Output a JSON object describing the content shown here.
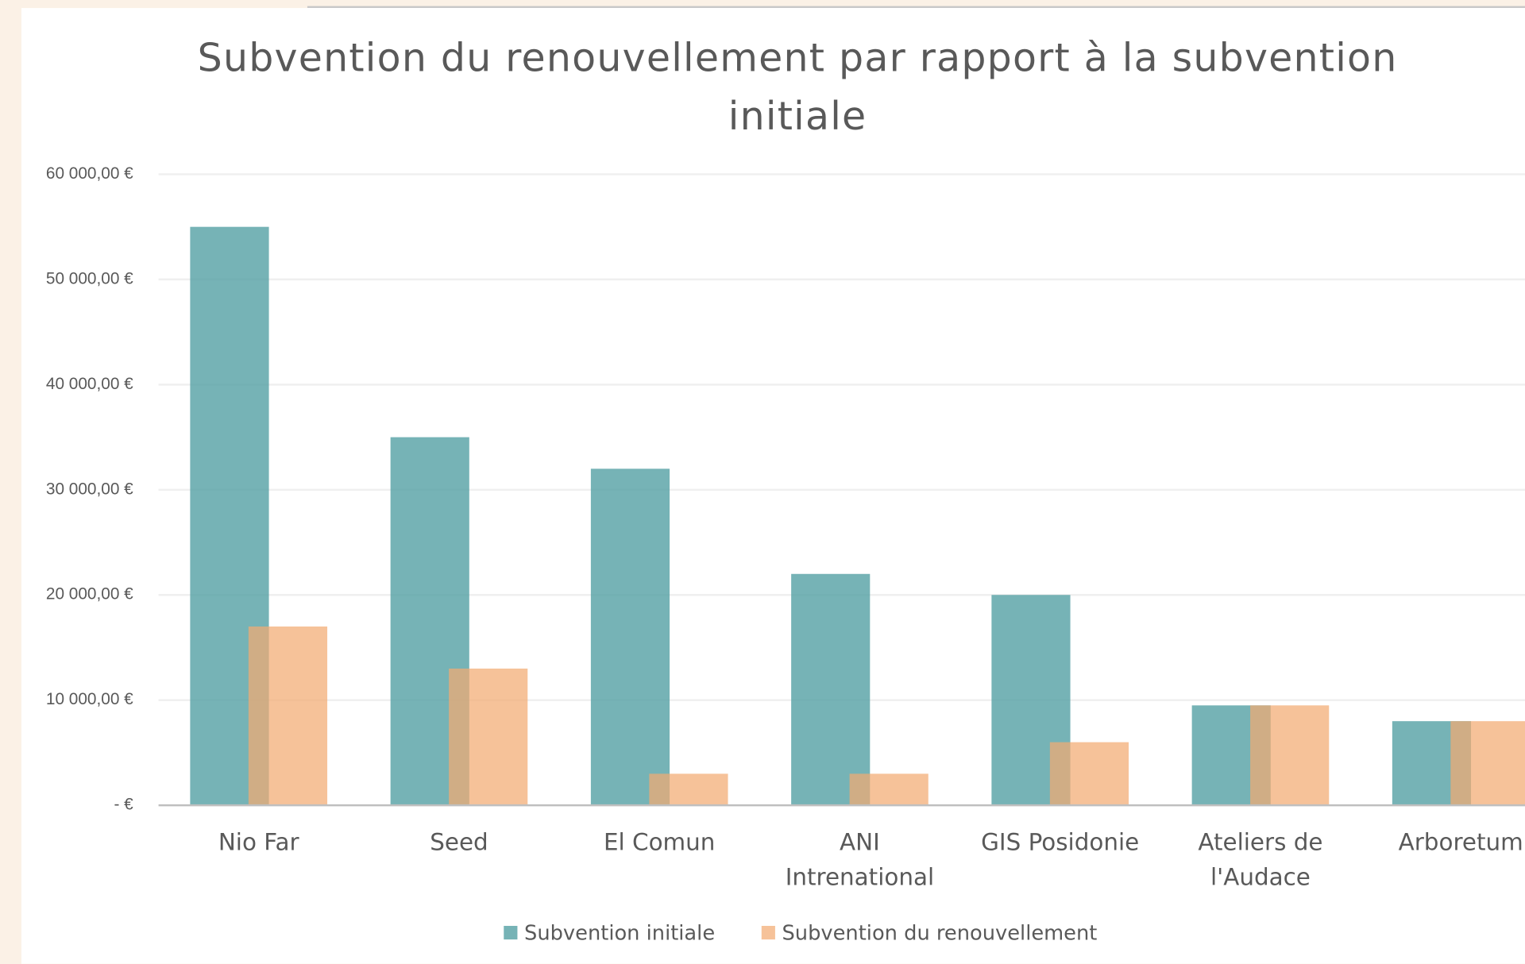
{
  "chart_data": {
    "type": "bar",
    "title": "Subvention du renouvellement par rapport à la subvention initiale",
    "categories": [
      "Nio Far",
      "Seed",
      "El Comun",
      "ANI Intrenational",
      "GIS Posidonie",
      "Ateliers de l'Audace",
      "Arboretum"
    ],
    "series": [
      {
        "name": "Subvention initiale",
        "color": "#4f9ea2",
        "values": [
          55000,
          35000,
          32000,
          22000,
          20000,
          9500,
          8000
        ]
      },
      {
        "name": "Subvention du renouvellement",
        "color": "#f2aa72",
        "values": [
          17000,
          13000,
          3000,
          3000,
          6000,
          9500,
          8000
        ]
      }
    ],
    "ylim": [
      0,
      60000
    ],
    "yticks": [
      {
        "value": 0,
        "label": "-   €"
      },
      {
        "value": 10000,
        "label": "10 000,00 €"
      },
      {
        "value": 20000,
        "label": "20 000,00 €"
      },
      {
        "value": 30000,
        "label": "30 000,00 €"
      },
      {
        "value": 40000,
        "label": "40 000,00 €"
      },
      {
        "value": 50000,
        "label": "50 000,00 €"
      },
      {
        "value": 60000,
        "label": "60 000,00 €"
      }
    ],
    "grid": true,
    "legend": "bottom"
  }
}
